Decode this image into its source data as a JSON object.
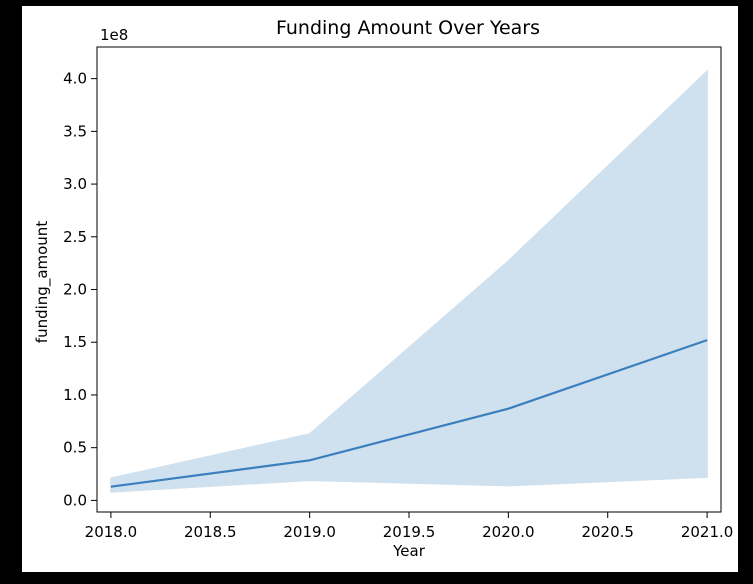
{
  "chart_data": {
    "type": "line",
    "title": "Funding Amount Over Years",
    "xlabel": "Year",
    "ylabel": "funding_amount",
    "y_offset_label": "1e8",
    "x": [
      2018.0,
      2019.0,
      2020.0,
      2021.0
    ],
    "xlim": [
      2017.93,
      2021.07
    ],
    "ylim": [
      -0.11,
      4.3
    ],
    "x_ticks": [
      2018.0,
      2018.5,
      2019.0,
      2019.5,
      2020.0,
      2020.5,
      2021.0
    ],
    "x_tick_labels": [
      "2018.0",
      "2018.5",
      "2019.0",
      "2019.5",
      "2020.0",
      "2020.5",
      "2021.0"
    ],
    "y_ticks": [
      0.0,
      0.5,
      1.0,
      1.5,
      2.0,
      2.5,
      3.0,
      3.5,
      4.0
    ],
    "y_tick_labels": [
      "0.0",
      "0.5",
      "1.0",
      "1.5",
      "2.0",
      "2.5",
      "3.0",
      "3.5",
      "4.0"
    ],
    "grid": false,
    "series": [
      {
        "values": [
          0.13,
          0.38,
          0.87,
          1.52
        ],
        "ci_lower": [
          0.08,
          0.19,
          0.14,
          0.22
        ],
        "ci_upper": [
          0.21,
          0.63,
          2.27,
          4.07
        ],
        "color": "#3a7fbd",
        "band_color": "#cfe0ee"
      }
    ]
  }
}
